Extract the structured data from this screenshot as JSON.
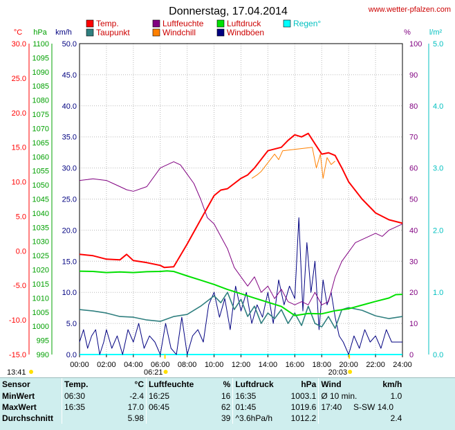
{
  "chart_data": {
    "type": "line",
    "title": "Donnerstag, 17.04.2014",
    "source": "www.wetter-pfalzen.com",
    "legend": [
      {
        "label": "Temp.",
        "color": "#ff0000"
      },
      {
        "label": "Taupunkt",
        "color": "#2f7f7f"
      },
      {
        "label": "Luftfeuchte",
        "color": "#800080"
      },
      {
        "label": "Windchill",
        "color": "#ff8000"
      },
      {
        "label": "Luftdruck",
        "color": "#00e000"
      },
      {
        "label": "Windböen",
        "color": "#000080"
      },
      {
        "label": "Regen°",
        "color": "#00ffff"
      }
    ],
    "axes": {
      "temp": {
        "unit": "°C",
        "min": -15,
        "max": 30,
        "step": 5,
        "color": "#ff0000"
      },
      "pressure": {
        "unit": "hPa",
        "min": 990,
        "max": 1100,
        "step": 5,
        "color": "#00a000"
      },
      "wind": {
        "unit": "km/h",
        "min": 0,
        "max": 50,
        "step": 5,
        "color": "#000080"
      },
      "humidity": {
        "unit": "%",
        "min": 0,
        "max": 100,
        "step": 10,
        "color": "#800080"
      },
      "rain": {
        "unit": "l/m²",
        "min": 0,
        "max": 5,
        "step": 1,
        "color": "#00c0c0"
      }
    },
    "x_ticks": [
      "00:00",
      "02:00",
      "04:00",
      "06:00",
      "08:00",
      "10:00",
      "12:00",
      "14:00",
      "16:00",
      "18:00",
      "20:00",
      "22:00",
      "24:00"
    ],
    "sun_markers": [
      {
        "label": "13:41",
        "hour": null
      },
      {
        "label": "06:21",
        "hour": 6.35
      },
      {
        "label": "20:03",
        "hour": 20.05
      }
    ],
    "series": [
      {
        "name": "Temp.",
        "color": "#ff0000",
        "axis": "temp",
        "x": [
          0,
          1,
          2,
          3,
          3.5,
          4,
          5,
          6,
          6.3,
          7,
          8,
          9,
          10,
          10.5,
          11,
          12,
          12.5,
          13,
          14,
          15,
          15.5,
          16,
          16.5,
          17,
          17.5,
          18,
          18.5,
          19,
          19.5,
          20,
          21,
          22,
          23,
          24
        ],
        "y": [
          -0.5,
          -0.7,
          -1.2,
          -1.3,
          -0.5,
          -1.4,
          -1.7,
          -2.1,
          -2.4,
          -2.3,
          1.0,
          4.5,
          8.0,
          8.8,
          9.0,
          10.5,
          11.0,
          12.0,
          14.5,
          15.0,
          16.0,
          16.8,
          16.5,
          17.0,
          15.5,
          14.0,
          14.2,
          13.8,
          12.0,
          10.0,
          7.5,
          5.5,
          4.5,
          4.0
        ]
      },
      {
        "name": "Windchill",
        "color": "#ff8000",
        "axis": "temp",
        "x": [
          12.8,
          13.2,
          13.5,
          14.5,
          14.8,
          15.1,
          17.3,
          17.6,
          17.9,
          18.1,
          18.4,
          18.7,
          19.0
        ],
        "y": [
          10.5,
          11.0,
          11.5,
          14.0,
          13.2,
          14.5,
          15.0,
          12.0,
          14.0,
          10.5,
          13.5,
          12.5,
          13.0
        ]
      },
      {
        "name": "Taupunkt",
        "color": "#2f7f7f",
        "axis": "temp",
        "x": [
          0,
          1,
          2,
          3,
          4,
          5,
          6,
          7,
          8,
          9,
          10,
          10.5,
          11,
          11.5,
          12,
          12.5,
          13,
          13.5,
          14,
          14.5,
          15,
          15.5,
          16,
          16.5,
          17,
          17.5,
          18,
          18.5,
          19,
          19.5,
          20,
          21,
          22,
          23,
          24
        ],
        "y": [
          -8.5,
          -8.7,
          -9.0,
          -9.5,
          -9.6,
          -10.0,
          -10.2,
          -9.5,
          -9.2,
          -8.0,
          -6.5,
          -7.5,
          -6.0,
          -8.5,
          -7.0,
          -9.5,
          -8.0,
          -10.5,
          -9.0,
          -9.8,
          -8.5,
          -10.5,
          -9.0,
          -10.8,
          -8.0,
          -10.5,
          -11.0,
          -9.5,
          -11.2,
          -8.5,
          -8.2,
          -8.6,
          -9.4,
          -9.8,
          -9.5
        ]
      },
      {
        "name": "Luftfeuchte",
        "color": "#800080",
        "axis": "humidity",
        "x": [
          0,
          1,
          2,
          2.5,
          3,
          3.5,
          4,
          5,
          5.5,
          6,
          6.5,
          7,
          7.5,
          8,
          8.5,
          9,
          9.5,
          10,
          10.5,
          11,
          11.5,
          12,
          12.5,
          13,
          13.5,
          14,
          14.5,
          15,
          15.5,
          16,
          16.5,
          17,
          17.5,
          18,
          18.5,
          19,
          19.5,
          20,
          20.5,
          21,
          21.5,
          22,
          22.5,
          23,
          23.5,
          24
        ],
        "y": [
          56,
          56.5,
          56,
          55,
          54,
          53,
          52.5,
          54,
          57,
          60,
          61,
          62,
          61,
          58,
          55,
          50,
          44,
          42,
          38,
          34,
          28,
          25,
          22,
          25,
          20,
          22,
          18,
          21,
          17,
          16,
          17,
          16,
          20,
          16,
          17,
          25,
          30,
          33,
          36,
          37,
          38,
          39,
          38,
          40,
          41,
          42
        ]
      },
      {
        "name": "Luftdruck",
        "color": "#00e000",
        "axis": "pressure",
        "x": [
          0,
          1,
          2,
          3,
          4,
          5,
          6,
          6.5,
          7,
          8,
          9,
          10,
          11,
          12,
          13,
          14,
          15,
          16,
          17,
          18,
          19,
          20,
          21,
          22,
          23,
          23.5,
          24
        ],
        "y": [
          1019.5,
          1019.4,
          1019.0,
          1019.2,
          1019.0,
          1019.3,
          1019.4,
          1019.6,
          1019.4,
          1017.8,
          1016.3,
          1014.8,
          1013.0,
          1011.5,
          1010.0,
          1008.5,
          1007.0,
          1003.8,
          1004.5,
          1004.4,
          1005.5,
          1006.2,
          1007.5,
          1008.8,
          1010.0,
          1011.2,
          1011.3
        ]
      },
      {
        "name": "Windböen",
        "color": "#000080",
        "axis": "wind",
        "x": [
          0,
          0.3,
          0.6,
          0.9,
          1.2,
          1.5,
          1.8,
          2.0,
          2.4,
          2.8,
          3.2,
          3.6,
          4.0,
          4.4,
          4.8,
          5.2,
          5.6,
          6.0,
          6.4,
          6.8,
          7.2,
          7.6,
          8.0,
          8.4,
          8.8,
          9.2,
          9.6,
          10.0,
          10.4,
          10.8,
          11.2,
          11.6,
          12.0,
          12.4,
          12.8,
          13.2,
          13.6,
          14.0,
          14.4,
          14.8,
          15.2,
          15.6,
          16.0,
          16.3,
          16.6,
          16.9,
          17.2,
          17.5,
          17.8,
          18.1,
          18.4,
          18.7,
          19.0,
          19.3,
          19.6,
          20.0,
          20.4,
          20.8,
          21.2,
          21.6,
          22.0,
          22.4,
          22.8,
          23.2,
          23.6,
          24.0
        ],
        "y": [
          2,
          4,
          1,
          3,
          4,
          0,
          2,
          4,
          1,
          3,
          0,
          4,
          2,
          5,
          1,
          3,
          2,
          0,
          5,
          1,
          0,
          6,
          0,
          3,
          4,
          2,
          8,
          10,
          6,
          9,
          4,
          11,
          7,
          10,
          5,
          8,
          6,
          10,
          5,
          12,
          8,
          11,
          9,
          22,
          7,
          18,
          10,
          15,
          4,
          12,
          8,
          10,
          6,
          3,
          2,
          0,
          3,
          1,
          4,
          2,
          3,
          1,
          4,
          2,
          2,
          2
        ]
      },
      {
        "name": "Regen°",
        "color": "#00ffff",
        "axis": "rain",
        "x": [
          0,
          24
        ],
        "y": [
          0,
          0
        ]
      }
    ]
  },
  "stats": {
    "headers": {
      "sensor": "Sensor",
      "temp": "Temp.",
      "temp_unit": "°C",
      "hum": "Luftfeuchte",
      "hum_unit": "%",
      "press": "Luftdruck",
      "press_unit": "hPa",
      "wind": "Wind",
      "wind_unit": "km/h"
    },
    "rows": [
      {
        "label": "MinWert",
        "t_time": "06:30",
        "t_val": "-2.4",
        "h_time": "16:25",
        "h_val": "16",
        "p_time": "16:35",
        "p_val": "1003.1",
        "w_desc": "Ø 10 min.",
        "w_val": "1.0"
      },
      {
        "label": "MaxWert",
        "t_time": "16:35",
        "t_val": "17.0",
        "h_time": "06:45",
        "h_val": "62",
        "p_time": "01:45",
        "p_val": "1019.6",
        "w_desc": "17:40     S-SW 14.0",
        "w_val": ""
      },
      {
        "label": "Durchschnitt",
        "t_time": "",
        "t_val": "5.98",
        "h_time": "",
        "h_val": "39",
        "p_time": "^3.6hPa/h",
        "p_val": "1012.2",
        "w_desc": "",
        "w_val": "2.4"
      }
    ]
  }
}
